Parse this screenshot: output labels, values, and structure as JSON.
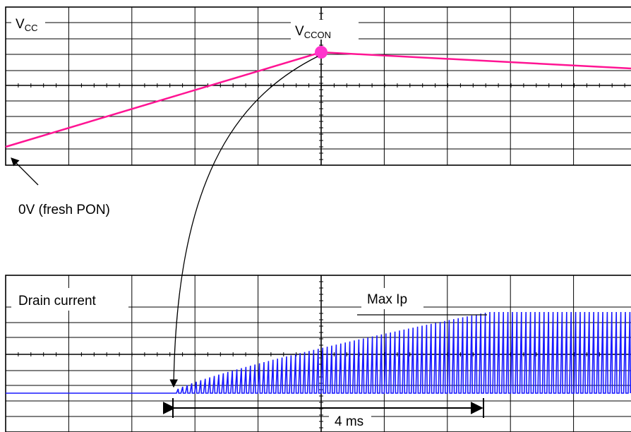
{
  "top_panel": {
    "vcc_label": {
      "base": "V",
      "sub": "CC"
    },
    "vccon_label": {
      "base": "V",
      "sub": "CCON"
    },
    "zero_label": "0V (fresh PON)"
  },
  "bottom_panel": {
    "drain_label": "Drain current",
    "max_label": "Max Ip",
    "time_label": "4 ms"
  }
}
